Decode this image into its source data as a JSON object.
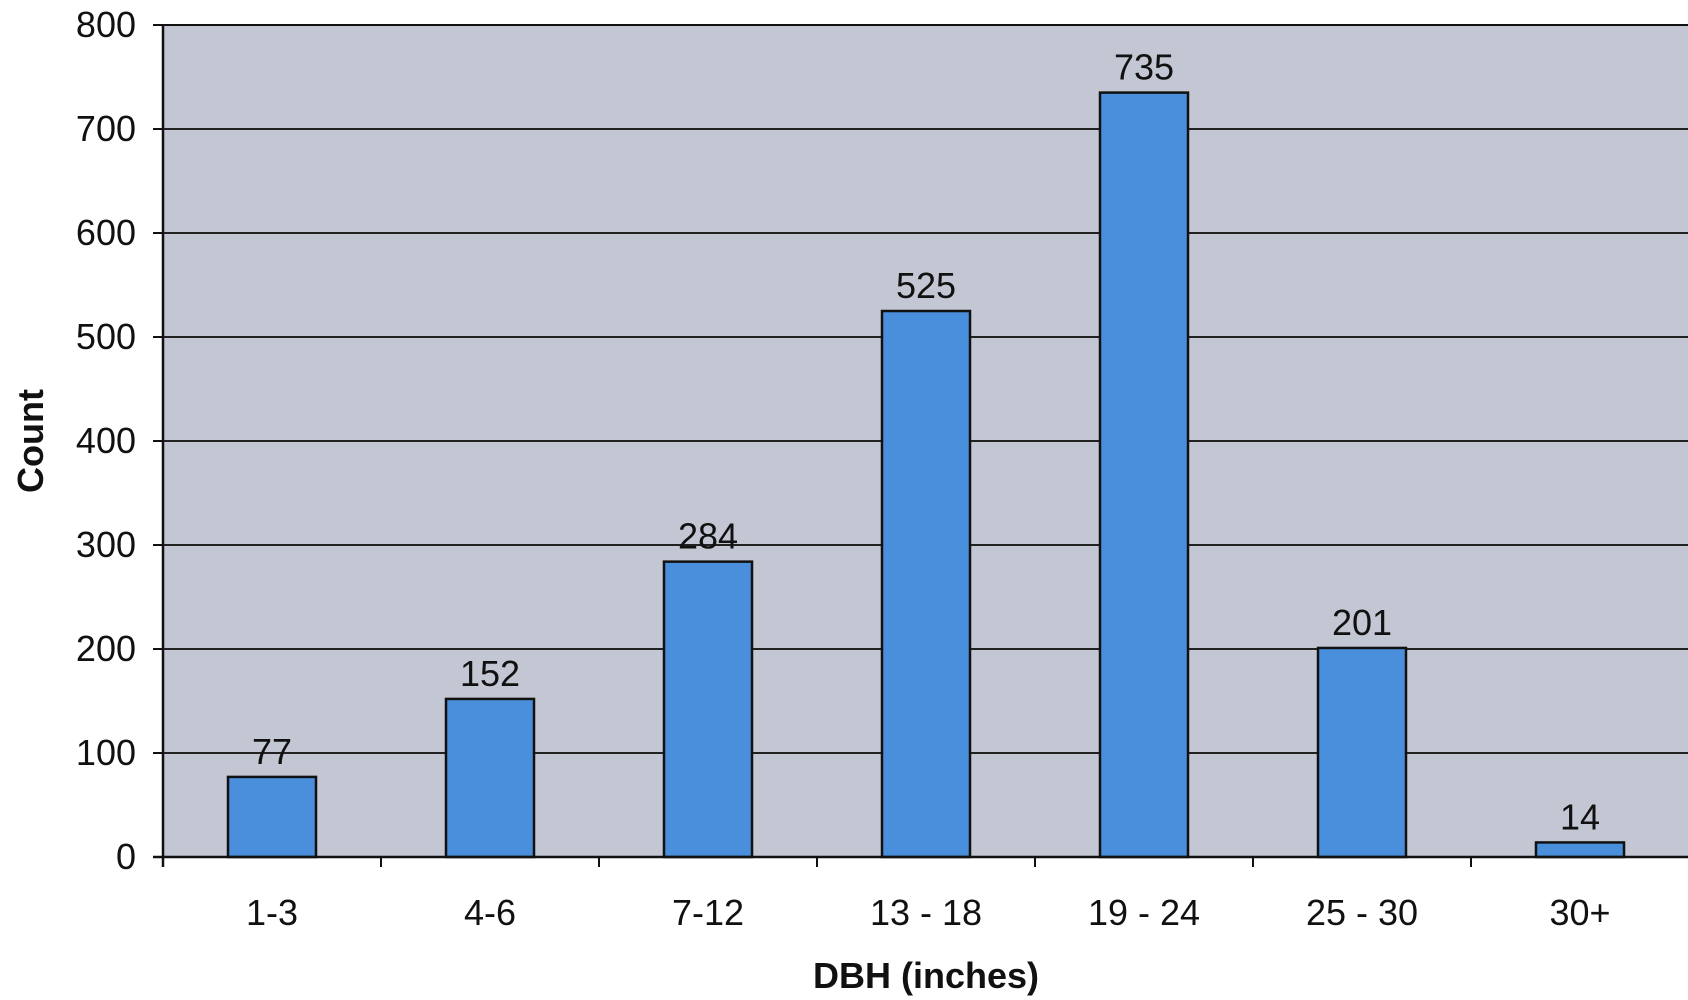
{
  "chart_data": {
    "type": "bar",
    "title": "",
    "xlabel": "DBH (inches)",
    "ylabel": "Count",
    "categories": [
      "1-3",
      "4-6",
      "7-12",
      "13 - 18",
      "19 - 24",
      "25 - 30",
      "30+"
    ],
    "values": [
      77,
      152,
      284,
      525,
      735,
      201,
      14
    ],
    "data_labels": [
      "77",
      "152",
      "284",
      "525",
      "735",
      "201",
      "14"
    ],
    "ylim": [
      0,
      800
    ],
    "yticks": [
      "0",
      "100",
      "200",
      "300",
      "400",
      "500",
      "600",
      "700",
      "800"
    ],
    "grid": true,
    "legend": "none",
    "colors": {
      "bar": "#4a8fdc",
      "bar_outline": "#111111",
      "plot_background": "#c3c6d3",
      "gridline": "#222222"
    }
  }
}
